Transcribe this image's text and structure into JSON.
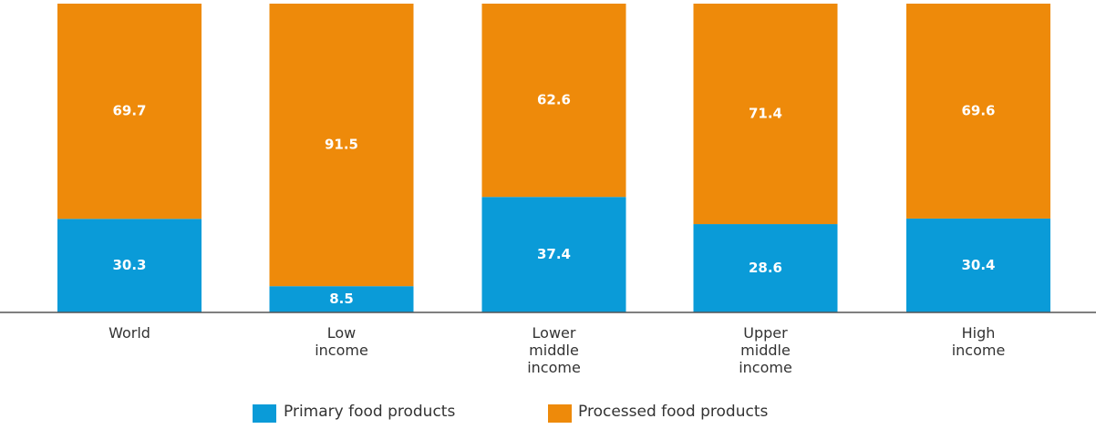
{
  "chart_data": {
    "type": "stacked_bar",
    "categories": [
      "World",
      "Low income",
      "Lower middle income",
      "Upper middle income",
      "High income"
    ],
    "series": [
      {
        "name": "Primary food products",
        "color": "#0a9bd8",
        "values": [
          30.3,
          8.5,
          37.4,
          28.6,
          30.4
        ]
      },
      {
        "name": "Processed food products",
        "color": "#ee8a0a",
        "values": [
          69.7,
          91.5,
          62.6,
          71.4,
          69.6
        ]
      }
    ],
    "ylim": [
      0,
      100
    ],
    "legend": "bottom"
  }
}
